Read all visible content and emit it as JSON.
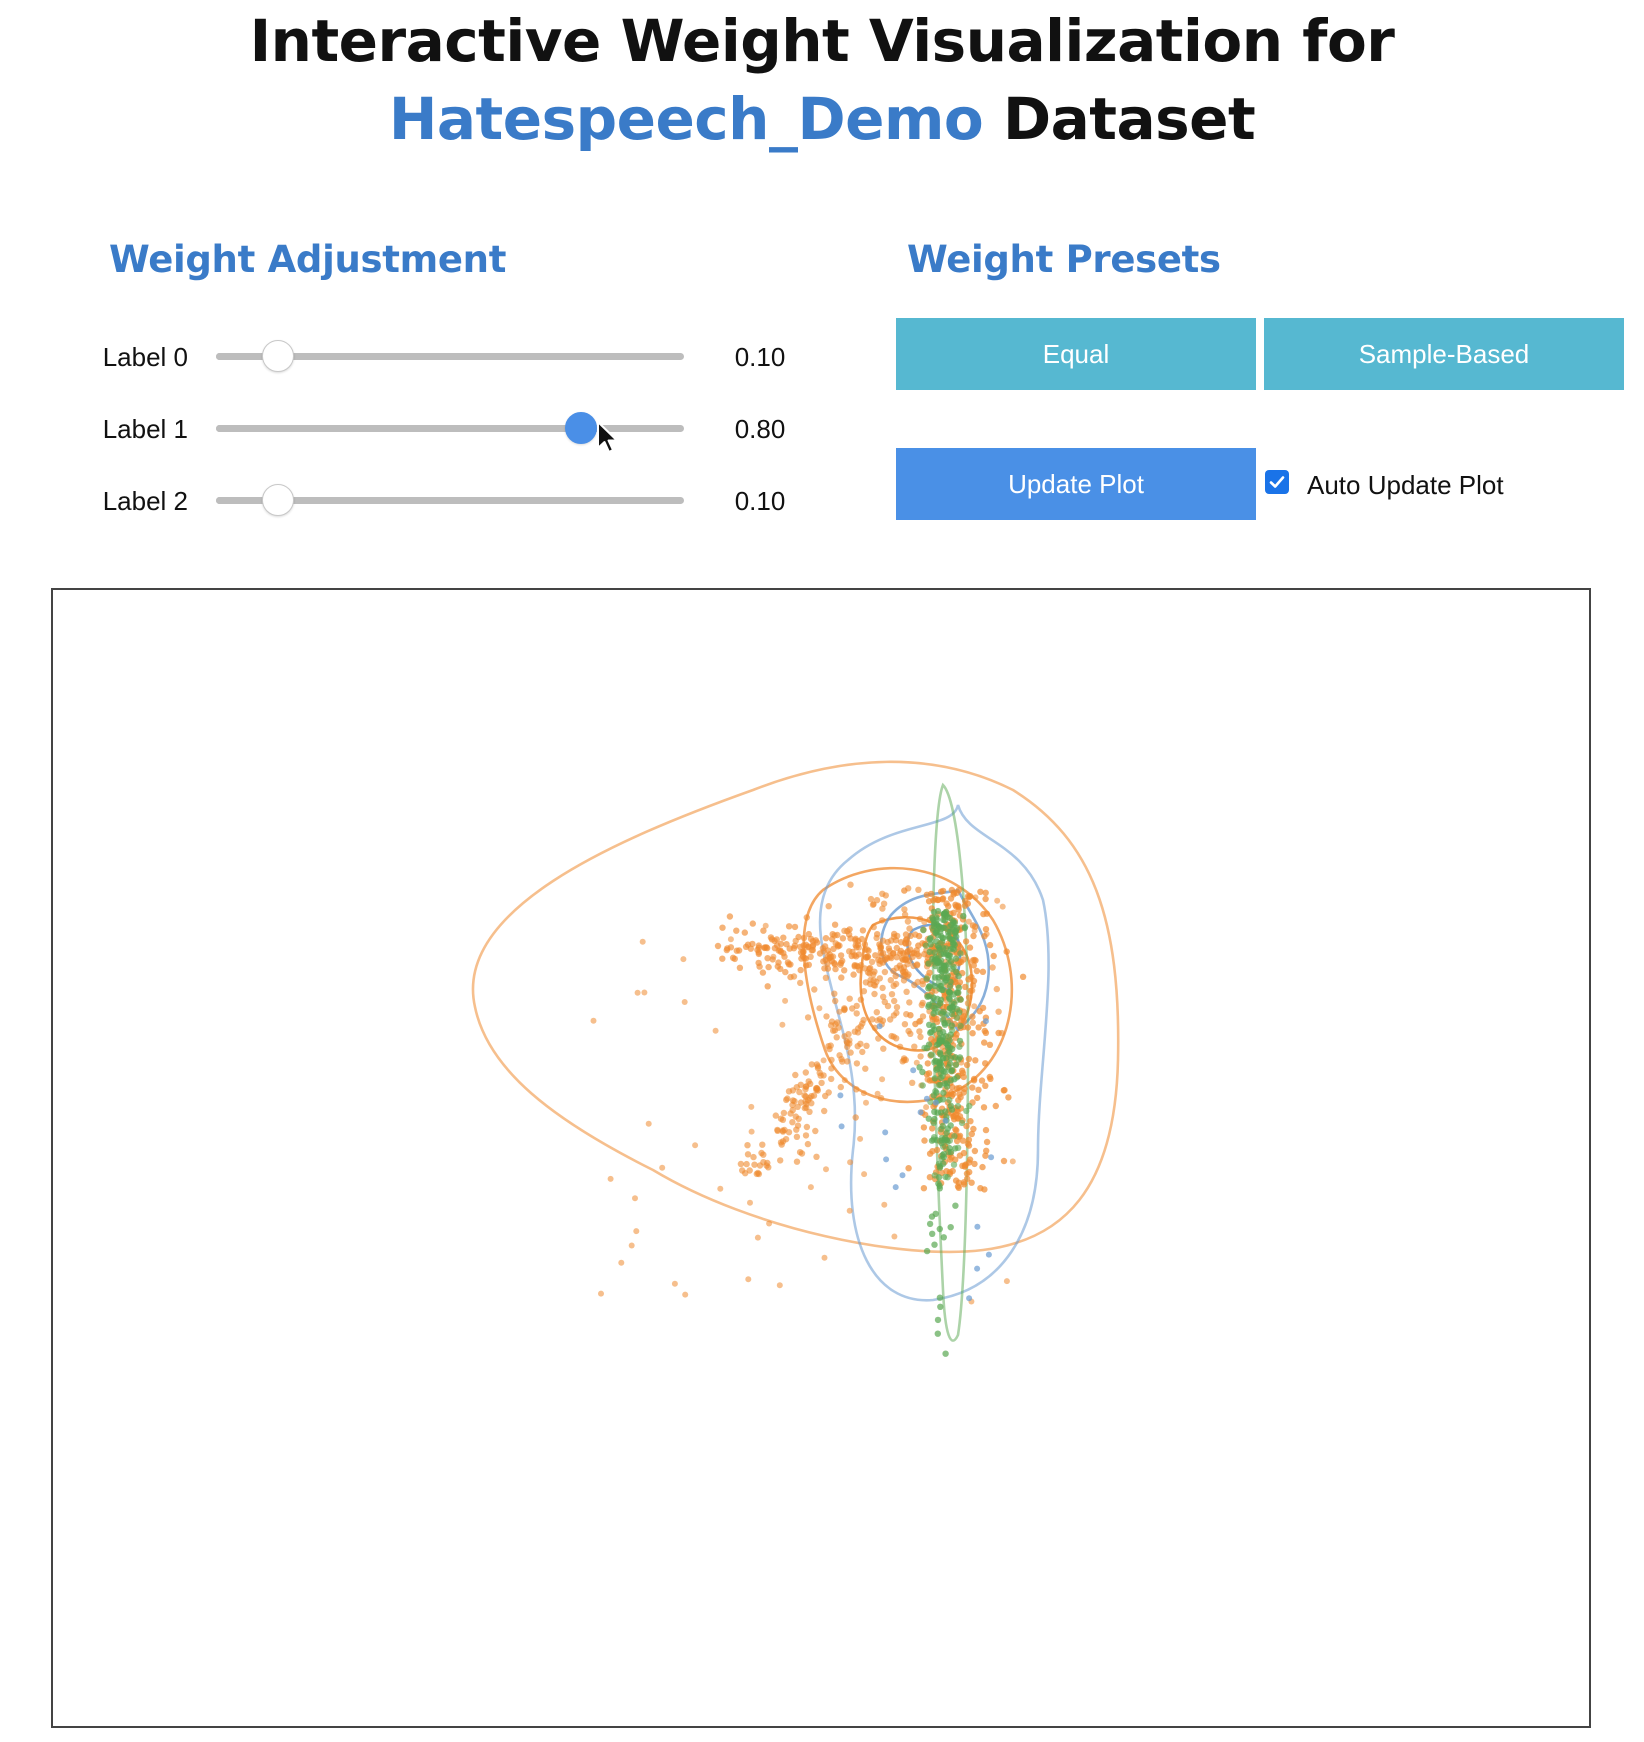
{
  "header": {
    "title_line1": "Interactive Weight Visualization for",
    "dataset_name": "Hatespeech_Demo",
    "title_suffix": "Dataset"
  },
  "weight_adjustment": {
    "title": "Weight Adjustment",
    "sliders": [
      {
        "label": "Label 0",
        "value": 0.1,
        "display": "0.10",
        "active": false
      },
      {
        "label": "Label 1",
        "value": 0.8,
        "display": "0.80",
        "active": true
      },
      {
        "label": "Label 2",
        "value": 0.1,
        "display": "0.10",
        "active": false
      }
    ]
  },
  "weight_presets": {
    "title": "Weight Presets",
    "equal_label": "Equal",
    "sample_based_label": "Sample-Based",
    "update_label": "Update Plot",
    "auto_update_label": "Auto Update Plot",
    "auto_update_checked": true
  },
  "colors": {
    "accent": "#3a7bc8",
    "preset_button": "#56b8d1",
    "primary_button": "#4a90e6",
    "label0": "#6a9bd1",
    "label1": "#ef8a2f",
    "label2": "#5aa852"
  },
  "chart_data": {
    "type": "scatter",
    "title": "",
    "xlabel": "",
    "ylabel": "",
    "axes_visible": false,
    "grid": false,
    "series": [
      {
        "color": "#6a9bd1",
        "density_contours": 3
      },
      {
        "color": "#ef8a2f",
        "density_contours": 3
      },
      {
        "color": "#5aa852",
        "density_contours": 1
      }
    ]
  }
}
